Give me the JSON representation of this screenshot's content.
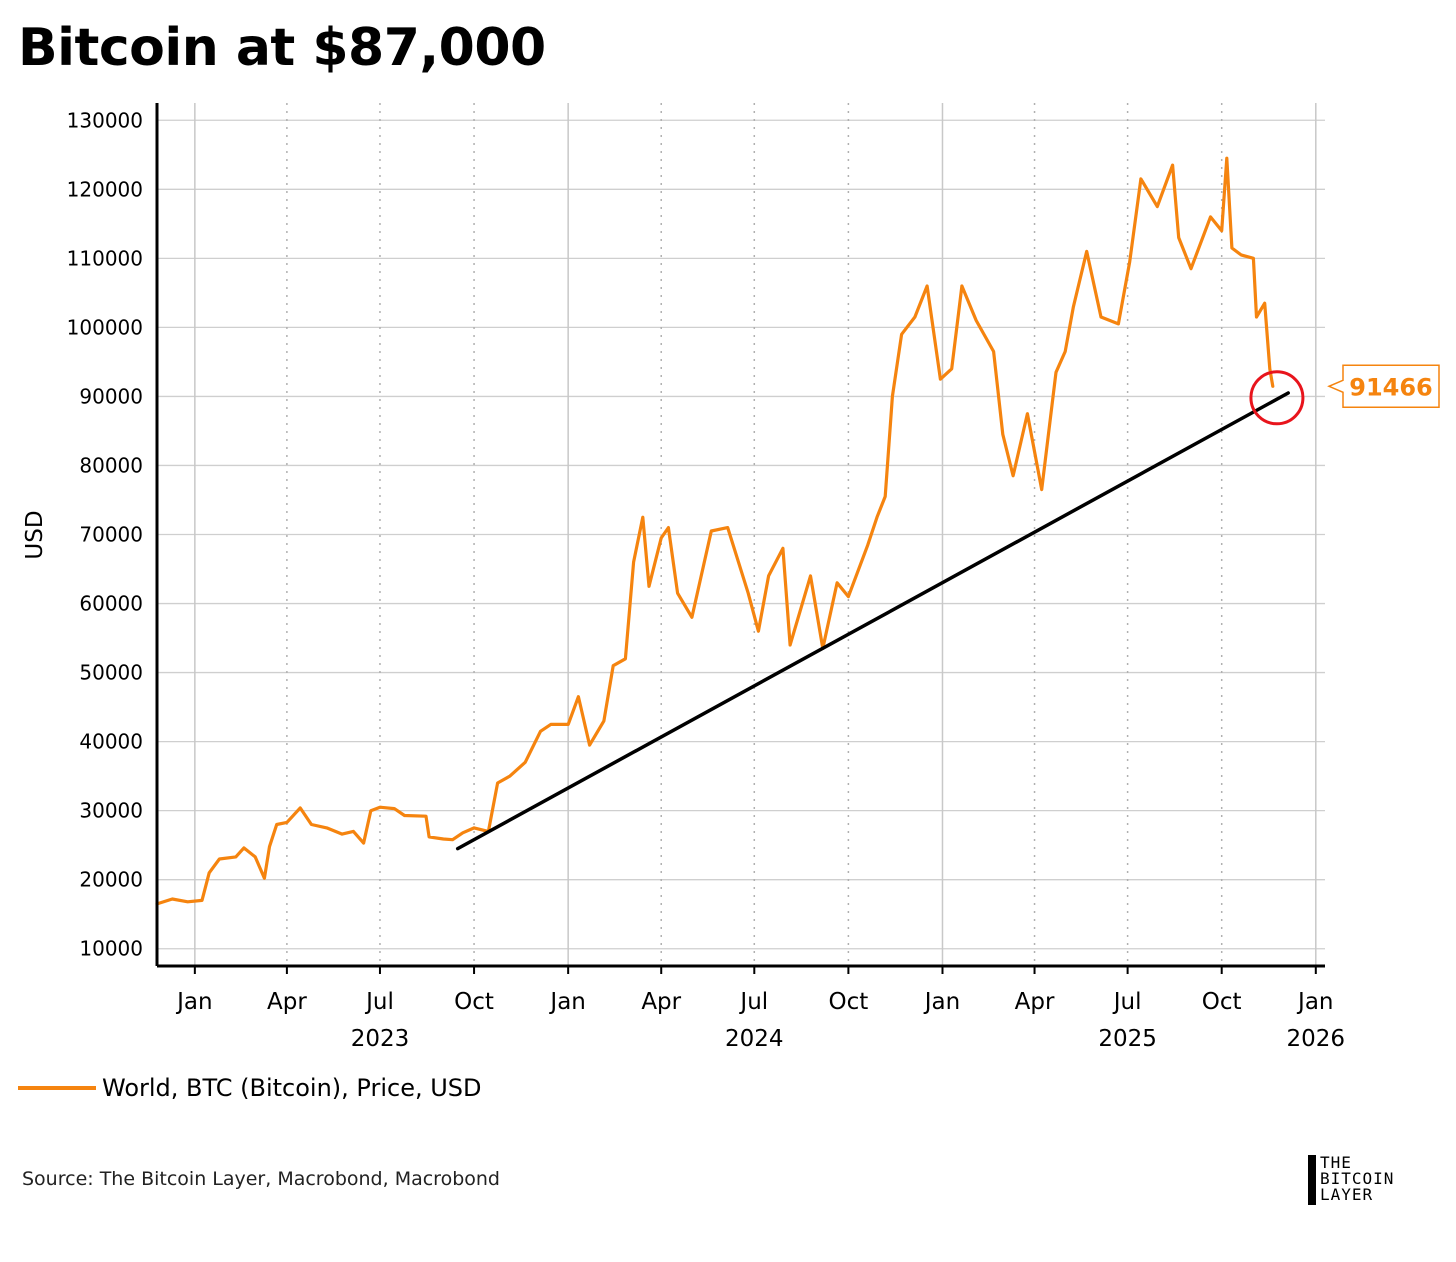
{
  "title": "Bitcoin at $87,000",
  "chart_data": {
    "type": "line",
    "ylabel": "USD",
    "ylim": [
      7500,
      132500
    ],
    "xlim": [
      "2022-11-25",
      "2026-01-10"
    ],
    "y_ticks": [
      10000,
      20000,
      30000,
      40000,
      50000,
      60000,
      70000,
      80000,
      90000,
      100000,
      110000,
      120000,
      130000
    ],
    "x_ticks": [
      {
        "date": "2023-01-01",
        "label": "Jan"
      },
      {
        "date": "2023-04-01",
        "label": "Apr"
      },
      {
        "date": "2023-07-01",
        "label": "Jul"
      },
      {
        "date": "2023-10-01",
        "label": "Oct"
      },
      {
        "date": "2024-01-01",
        "label": "Jan"
      },
      {
        "date": "2024-04-01",
        "label": "Apr"
      },
      {
        "date": "2024-07-01",
        "label": "Jul"
      },
      {
        "date": "2024-10-01",
        "label": "Oct"
      },
      {
        "date": "2025-01-01",
        "label": "Jan"
      },
      {
        "date": "2025-04-01",
        "label": "Apr"
      },
      {
        "date": "2025-07-01",
        "label": "Jul"
      },
      {
        "date": "2025-10-01",
        "label": "Oct"
      },
      {
        "date": "2026-01-01",
        "label": "Jan"
      }
    ],
    "year_labels": [
      {
        "date": "2023-07-01",
        "label": "2023"
      },
      {
        "date": "2024-07-01",
        "label": "2024"
      },
      {
        "date": "2025-07-01",
        "label": "2025"
      },
      {
        "date": "2026-01-01",
        "label": "2026"
      }
    ],
    "grid": true,
    "series": [
      {
        "name": "World, BTC (Bitcoin), Price, USD",
        "color": "#f5840f",
        "points": [
          [
            "2022-11-25",
            16500
          ],
          [
            "2022-12-10",
            17200
          ],
          [
            "2022-12-25",
            16800
          ],
          [
            "2023-01-08",
            17000
          ],
          [
            "2023-01-15",
            21000
          ],
          [
            "2023-01-25",
            23000
          ],
          [
            "2023-02-10",
            23300
          ],
          [
            "2023-02-18",
            24600
          ],
          [
            "2023-03-01",
            23300
          ],
          [
            "2023-03-10",
            20200
          ],
          [
            "2023-03-15",
            24800
          ],
          [
            "2023-03-22",
            28000
          ],
          [
            "2023-04-01",
            28300
          ],
          [
            "2023-04-14",
            30400
          ],
          [
            "2023-04-25",
            28000
          ],
          [
            "2023-05-10",
            27500
          ],
          [
            "2023-05-25",
            26600
          ],
          [
            "2023-06-05",
            27000
          ],
          [
            "2023-06-15",
            25300
          ],
          [
            "2023-06-22",
            30000
          ],
          [
            "2023-07-01",
            30500
          ],
          [
            "2023-07-15",
            30300
          ],
          [
            "2023-07-25",
            29300
          ],
          [
            "2023-08-15",
            29200
          ],
          [
            "2023-08-18",
            26200
          ],
          [
            "2023-09-01",
            25900
          ],
          [
            "2023-09-10",
            25800
          ],
          [
            "2023-09-20",
            26800
          ],
          [
            "2023-10-01",
            27500
          ],
          [
            "2023-10-15",
            27000
          ],
          [
            "2023-10-24",
            34000
          ],
          [
            "2023-11-05",
            35000
          ],
          [
            "2023-11-20",
            37000
          ],
          [
            "2023-12-05",
            41500
          ],
          [
            "2023-12-15",
            42500
          ],
          [
            "2024-01-01",
            42500
          ],
          [
            "2024-01-11",
            46500
          ],
          [
            "2024-01-22",
            39500
          ],
          [
            "2024-02-05",
            43000
          ],
          [
            "2024-02-14",
            51000
          ],
          [
            "2024-02-26",
            52000
          ],
          [
            "2024-03-05",
            66000
          ],
          [
            "2024-03-14",
            72500
          ],
          [
            "2024-03-20",
            62500
          ],
          [
            "2024-04-01",
            69500
          ],
          [
            "2024-04-08",
            71000
          ],
          [
            "2024-04-17",
            61500
          ],
          [
            "2024-05-01",
            58000
          ],
          [
            "2024-05-20",
            70500
          ],
          [
            "2024-06-05",
            71000
          ],
          [
            "2024-06-25",
            61500
          ],
          [
            "2024-07-05",
            56000
          ],
          [
            "2024-07-15",
            64000
          ],
          [
            "2024-07-29",
            68000
          ],
          [
            "2024-08-05",
            54000
          ],
          [
            "2024-08-25",
            64000
          ],
          [
            "2024-09-06",
            53500
          ],
          [
            "2024-09-20",
            63000
          ],
          [
            "2024-10-01",
            61000
          ],
          [
            "2024-10-20",
            68500
          ],
          [
            "2024-10-29",
            72500
          ],
          [
            "2024-11-06",
            75500
          ],
          [
            "2024-11-13",
            90000
          ],
          [
            "2024-11-22",
            99000
          ],
          [
            "2024-12-05",
            101500
          ],
          [
            "2024-12-17",
            106000
          ],
          [
            "2024-12-30",
            92500
          ],
          [
            "2025-01-10",
            94000
          ],
          [
            "2025-01-20",
            106000
          ],
          [
            "2025-02-03",
            101000
          ],
          [
            "2025-02-20",
            96500
          ],
          [
            "2025-03-01",
            84500
          ],
          [
            "2025-03-11",
            78500
          ],
          [
            "2025-03-25",
            87500
          ],
          [
            "2025-04-08",
            76500
          ],
          [
            "2025-04-22",
            93500
          ],
          [
            "2025-05-01",
            96500
          ],
          [
            "2025-05-09",
            103000
          ],
          [
            "2025-05-22",
            111000
          ],
          [
            "2025-06-05",
            101500
          ],
          [
            "2025-06-22",
            100500
          ],
          [
            "2025-07-03",
            109500
          ],
          [
            "2025-07-14",
            121500
          ],
          [
            "2025-07-30",
            117500
          ],
          [
            "2025-08-14",
            123500
          ],
          [
            "2025-08-20",
            113000
          ],
          [
            "2025-09-01",
            108500
          ],
          [
            "2025-09-20",
            116000
          ],
          [
            "2025-10-01",
            114000
          ],
          [
            "2025-10-06",
            124500
          ],
          [
            "2025-10-11",
            111500
          ],
          [
            "2025-10-20",
            110500
          ],
          [
            "2025-11-01",
            110000
          ],
          [
            "2025-11-04",
            101500
          ],
          [
            "2025-11-12",
            103500
          ],
          [
            "2025-11-17",
            94000
          ],
          [
            "2025-11-20",
            91466
          ]
        ]
      },
      {
        "name": "trend-line",
        "color": "#000000",
        "points": [
          [
            "2023-09-15",
            24500
          ],
          [
            "2025-12-05",
            90500
          ]
        ]
      }
    ],
    "last_value_label": "91466",
    "highlight": {
      "date": "2025-11-24",
      "value": 89800,
      "color": "#e8141c"
    }
  },
  "legend": {
    "label": "World, BTC (Bitcoin), Price, USD"
  },
  "source": "Source: The Bitcoin Layer, Macrobond, Macrobond",
  "logo": {
    "lines": [
      "THE",
      "BITCOIN",
      "LAYER"
    ]
  }
}
